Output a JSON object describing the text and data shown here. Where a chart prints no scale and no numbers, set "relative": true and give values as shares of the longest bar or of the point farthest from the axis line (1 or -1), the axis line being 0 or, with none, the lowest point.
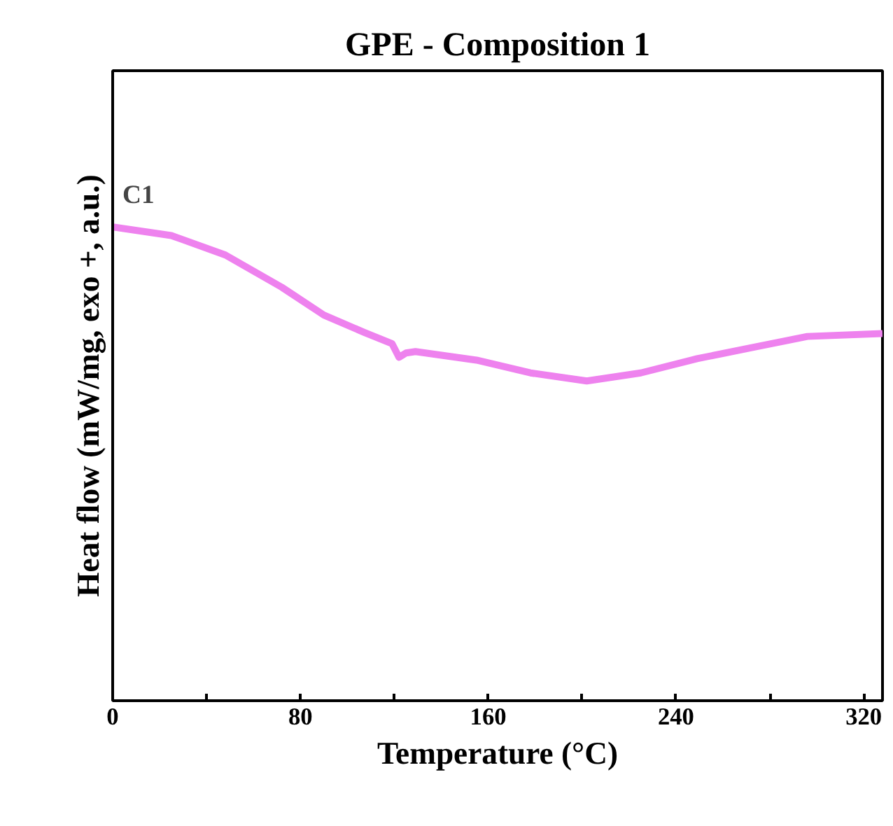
{
  "chart_data": {
    "type": "line",
    "title": "GPE - Composition 1",
    "xlabel": "Temperature (°C)",
    "ylabel": "Heat flow (mW/mg, exo +, a.u.)",
    "relative": true,
    "xlim": [
      0,
      328
    ],
    "xticks": [
      0,
      {
        "value": 40,
        "label": null
      },
      80,
      {
        "value": 120,
        "label": null
      },
      160,
      {
        "value": 200,
        "label": null
      },
      240,
      {
        "value": 280,
        "label": null
      },
      320
    ],
    "x": [
      0,
      25,
      48,
      72,
      90,
      107,
      119,
      122,
      125,
      129,
      155,
      178,
      202,
      225,
      249,
      273,
      296,
      328
    ],
    "series": [
      {
        "color": "#ee82ee",
        "values": [
          1.0,
          0.982,
          0.941,
          0.873,
          0.814,
          0.778,
          0.754,
          0.725,
          0.734,
          0.737,
          0.719,
          0.692,
          0.675,
          0.692,
          0.722,
          0.746,
          0.769,
          0.775
        ]
      }
    ],
    "annotations": [
      {
        "text": "C1",
        "x": 3,
        "y": 1.0
      }
    ],
    "grid": false,
    "line_style": "solid",
    "marker": "none"
  }
}
